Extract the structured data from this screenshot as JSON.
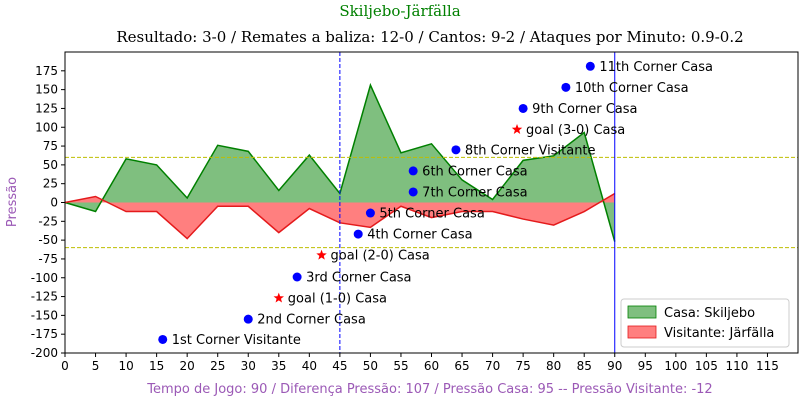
{
  "chart_data": {
    "type": "area",
    "title": "Skiljebo-Järfälla",
    "subtitle": "Resultado: 3-0 / Remates a baliza: 12-0 / Cantos: 9-2 / Ataques por Minuto: 0.9-0.2",
    "xlabel": "Tempo de Jogo: 90 / Diferença Pressão: 107 / Pressão Casa: 95 -- Pressão Visitante: -12",
    "ylabel": "Pressão",
    "xlim": [
      0,
      120
    ],
    "ylim": [
      -200,
      200
    ],
    "xticks": [
      0,
      5,
      10,
      15,
      20,
      25,
      30,
      35,
      40,
      45,
      50,
      55,
      60,
      65,
      70,
      75,
      80,
      85,
      90,
      95,
      100,
      105,
      110,
      115
    ],
    "yticks": [
      -200,
      -175,
      -150,
      -125,
      -100,
      -75,
      -50,
      -25,
      0,
      25,
      50,
      75,
      100,
      125,
      150,
      175
    ],
    "x": [
      0,
      5,
      10,
      15,
      20,
      25,
      30,
      35,
      40,
      45,
      50,
      55,
      60,
      65,
      70,
      75,
      80,
      85,
      90
    ],
    "series": [
      {
        "name": "Casa: Skiljebo",
        "color": "#008000",
        "fill": "#7fbf7f",
        "values": [
          0,
          -12,
          58,
          50,
          6,
          76,
          68,
          16,
          63,
          12,
          156,
          66,
          78,
          30,
          4,
          56,
          62,
          93,
          -52
        ]
      },
      {
        "name": "Visitante: Järfälla",
        "color": "#e41a1c",
        "fill": "#ff7f7f",
        "values": [
          0,
          8,
          -12,
          -12,
          -48,
          -5,
          -5,
          -40,
          -8,
          -27,
          -33,
          -5,
          -20,
          -12,
          -12,
          -22,
          -30,
          -12,
          12
        ]
      }
    ],
    "hlines": [
      {
        "y": 60,
        "color": "#bfbf00",
        "style": "dashed"
      },
      {
        "y": -60,
        "color": "#bfbf00",
        "style": "dashed"
      }
    ],
    "vlines": [
      {
        "x": 45,
        "color": "#0000ff",
        "style": "dashed"
      },
      {
        "x": 90,
        "color": "#0000ff",
        "style": "solid"
      }
    ],
    "annotations": [
      {
        "x": 16,
        "y": -182,
        "label": "1st Corner Visitante",
        "marker": "circle",
        "color": "#0000ff"
      },
      {
        "x": 30,
        "y": -155,
        "label": "2nd Corner Casa",
        "marker": "circle",
        "color": "#0000ff"
      },
      {
        "x": 35,
        "y": -127,
        "label": "goal (1-0) Casa",
        "marker": "star",
        "color": "#ff0000"
      },
      {
        "x": 38,
        "y": -99,
        "label": "3rd Corner Casa",
        "marker": "circle",
        "color": "#0000ff"
      },
      {
        "x": 42,
        "y": -70,
        "label": "goal (2-0) Casa",
        "marker": "star",
        "color": "#ff0000"
      },
      {
        "x": 48,
        "y": -42,
        "label": "4th Corner Casa",
        "marker": "circle",
        "color": "#0000ff"
      },
      {
        "x": 50,
        "y": -14,
        "label": "5th Corner Casa",
        "marker": "circle",
        "color": "#0000ff"
      },
      {
        "x": 57,
        "y": 14,
        "label": "7th Corner Casa",
        "marker": "circle",
        "color": "#0000ff"
      },
      {
        "x": 57,
        "y": 42,
        "label": "6th Corner Casa",
        "marker": "circle",
        "color": "#0000ff"
      },
      {
        "x": 64,
        "y": 70,
        "label": "8th Corner Visitante",
        "marker": "circle",
        "color": "#0000ff"
      },
      {
        "x": 74,
        "y": 97,
        "label": "goal (3-0) Casa",
        "marker": "star",
        "color": "#ff0000"
      },
      {
        "x": 75,
        "y": 125,
        "label": "9th Corner Casa",
        "marker": "circle",
        "color": "#0000ff"
      },
      {
        "x": 82,
        "y": 153,
        "label": "10th Corner Casa",
        "marker": "circle",
        "color": "#0000ff"
      },
      {
        "x": 86,
        "y": 181,
        "label": "11th Corner Casa",
        "marker": "circle",
        "color": "#0000ff"
      }
    ],
    "legend": {
      "placement": "lower-right",
      "entries": [
        "Casa: Skiljebo",
        "Visitante: Järfälla"
      ]
    },
    "grid": false
  }
}
